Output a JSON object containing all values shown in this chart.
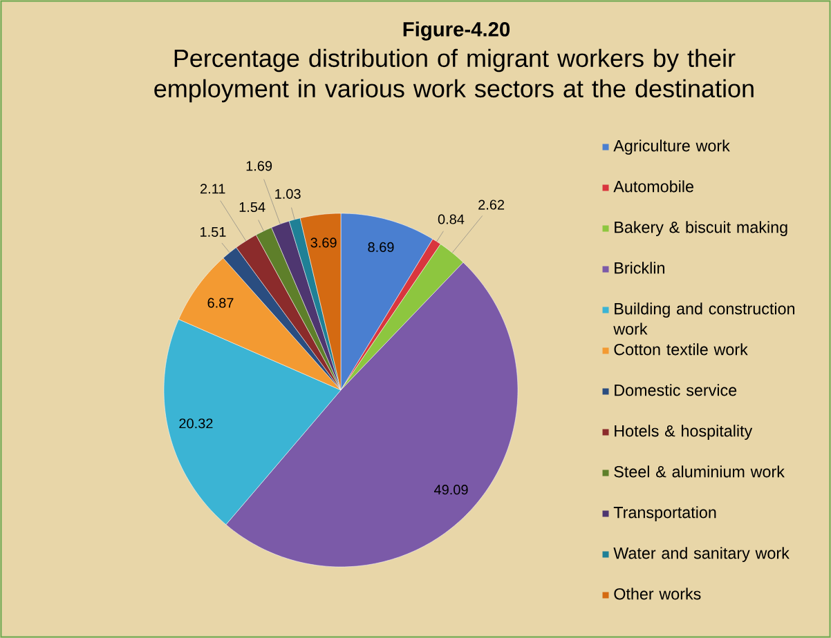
{
  "chart_data": {
    "type": "pie",
    "title": "Figure-4.20",
    "subtitle": "Percentage distribution of migrant workers by their employment  in various work sectors at the destination",
    "categories": [
      "Agriculture work",
      "Automobile",
      "Bakery & biscuit making",
      "Bricklin",
      "Building and construction work",
      "Cotton textile work",
      "Domestic service",
      "Hotels & hospitality",
      "Steel & aluminium work",
      "Transportation",
      "Water and sanitary work",
      "Other works"
    ],
    "values": [
      8.69,
      0.84,
      2.62,
      49.09,
      20.32,
      6.87,
      1.51,
      2.11,
      1.54,
      1.69,
      1.03,
      3.69
    ],
    "colors": [
      "#4a7fd0",
      "#d9363e",
      "#8dc63f",
      "#7b5aa8",
      "#3bb4d4",
      "#f39a32",
      "#2a4d80",
      "#8b2b2b",
      "#5e7f2a",
      "#4e3670",
      "#1f8096",
      "#d46a12"
    ],
    "data_labels": true,
    "legend": "right"
  }
}
